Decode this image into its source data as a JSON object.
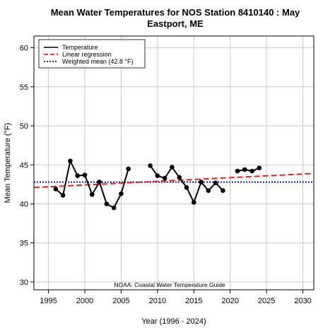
{
  "chart_data": {
    "type": "line",
    "title_line1": "Mean Water Temperatures for NOS Station 8410140 : May",
    "title_line2": "Eastport, ME",
    "xlabel": "Year (1996 - 2024)",
    "ylabel": "Mean Temperature (°F)",
    "xlim": [
      1993,
      2031.5
    ],
    "ylim": [
      29,
      61.5
    ],
    "xticks": [
      "1995",
      "2000",
      "2005",
      "2010",
      "2015",
      "2020",
      "2025",
      "2030"
    ],
    "yticks": [
      "30",
      "35",
      "40",
      "45",
      "50",
      "55",
      "60"
    ],
    "grid": true,
    "legend_position": "top-left",
    "legend": {
      "temperature": "Temperature",
      "regression": "Linear regression",
      "weighted_mean": "Weighted mean (42.8 °F)"
    },
    "annotation": "NOAA: Coastal Water Temperature Guide",
    "colors": {
      "temperature": "#000000",
      "regression": "#e8202a",
      "weighted_mean": "#1a1ab8",
      "grid": "#c8c8c8"
    },
    "series": [
      {
        "name": "Temperature",
        "segments": [
          [
            [
              1996,
              41.9
            ],
            [
              1997,
              41.1
            ],
            [
              1998,
              45.5
            ],
            [
              1999,
              43.6
            ],
            [
              2000,
              43.7
            ],
            [
              2001,
              41.2
            ],
            [
              2002,
              42.8
            ],
            [
              2003,
              40.0
            ],
            [
              2004,
              39.5
            ],
            [
              2005,
              41.3
            ],
            [
              2006,
              44.5
            ]
          ],
          [
            [
              2009,
              44.9
            ],
            [
              2010,
              43.6
            ],
            [
              2011,
              43.3
            ],
            [
              2012,
              44.7
            ],
            [
              2013,
              43.4
            ],
            [
              2014,
              42.1
            ],
            [
              2015,
              40.2
            ],
            [
              2016,
              42.8
            ],
            [
              2017,
              41.7
            ],
            [
              2018,
              42.7
            ],
            [
              2019,
              41.7
            ]
          ],
          [
            [
              2021,
              44.2
            ],
            [
              2022,
              44.4
            ],
            [
              2023,
              44.2
            ],
            [
              2024,
              44.6
            ]
          ]
        ]
      }
    ],
    "regression": {
      "x": [
        1993,
        2031.5
      ],
      "y": [
        42.1,
        43.9
      ]
    },
    "weighted_mean": 42.8
  }
}
